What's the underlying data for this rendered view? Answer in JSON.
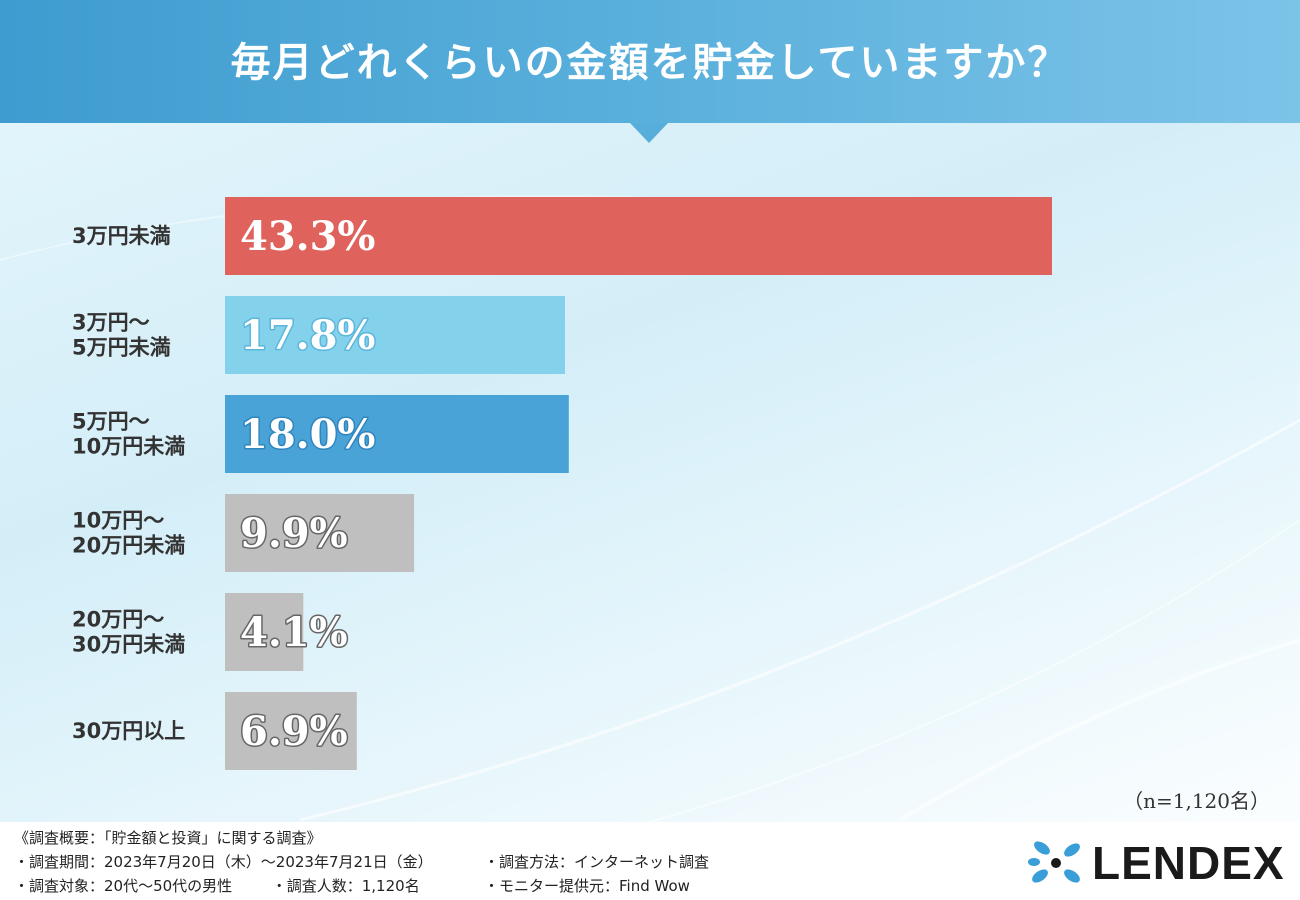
{
  "title": "毎月どれくらいの金額を貯金していますか？",
  "sample_note": "（n=1,120名）",
  "survey": {
    "heading": "《調査概要：「貯金額と投資」に関する調査》",
    "period": "・調査期間：2023年7月20日（木）〜2023年7月21日（金）",
    "method": "・調査方法：インターネット調査",
    "target": "・調査対象：20代〜50代の男性",
    "count": "・調査人数：1,120名",
    "provider": "・モニター提供元：Find Wow"
  },
  "logo": {
    "text": "LENDEX",
    "icon": "leaf-cluster-icon",
    "icon_color": "#3a9fd8"
  },
  "chart_data": {
    "type": "bar",
    "orientation": "horizontal",
    "categories": [
      [
        "3万円未満"
      ],
      [
        "3万円〜",
        "5万円未満"
      ],
      [
        "5万円〜",
        "10万円未満"
      ],
      [
        "10万円〜",
        "20万円未満"
      ],
      [
        "20万円〜",
        "30万円未満"
      ],
      [
        "30万円以上"
      ]
    ],
    "values": [
      43.3,
      17.8,
      18.0,
      9.9,
      4.1,
      6.9
    ],
    "value_labels": [
      "43.3%",
      "17.8%",
      "18.0%",
      "9.9%",
      "4.1%",
      "6.9%"
    ],
    "colors": [
      "#df625c",
      "#84d1ec",
      "#4aa3d6",
      "#bfbfbf",
      "#bfbfbf",
      "#bfbfbf"
    ],
    "label_outline_colors": [
      "#df625c",
      "#5bb6dc",
      "#2f86bf",
      "#666666",
      "#666666",
      "#666666"
    ],
    "xlim": [
      0,
      43.3
    ],
    "grid": false,
    "legend": "none"
  }
}
